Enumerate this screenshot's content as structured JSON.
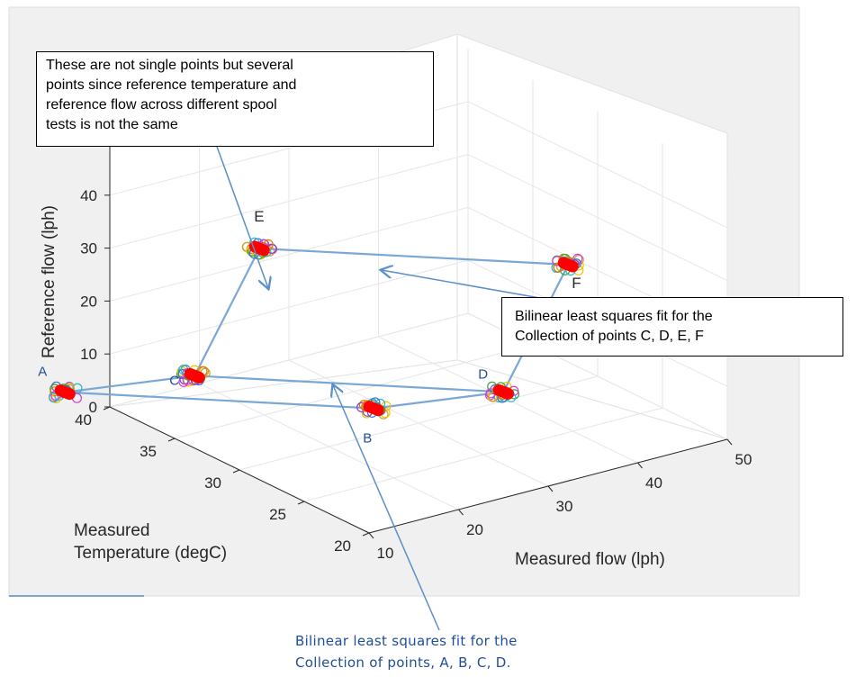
{
  "chart_data": {
    "type": "scatter3d",
    "xlabel": "Measured flow (lph)",
    "ylabel_lines": [
      "Measured",
      "Temperature (degC)"
    ],
    "zlabel": "Reference flow (lph)",
    "x_ticks": [
      "10",
      "20",
      "30",
      "40",
      "50"
    ],
    "y_ticks": [
      "20",
      "25",
      "30",
      "35",
      "40"
    ],
    "z_ticks": [
      "0",
      "10",
      "20",
      "30",
      "40"
    ],
    "xlim": [
      10,
      50
    ],
    "ylim": [
      20,
      40
    ],
    "zlim": [
      0,
      50
    ],
    "grid": true,
    "points": [
      {
        "label": "A",
        "x": 5,
        "y": 40,
        "z": 5
      },
      {
        "label": "B",
        "x": 25,
        "y": 30,
        "z": 5
      },
      {
        "label": "C",
        "x": 5,
        "y": 30,
        "z": 20
      },
      {
        "label": "D",
        "x": 25,
        "y": 20,
        "z": 20
      },
      {
        "label": "E",
        "x": 5,
        "y": 25,
        "z": 50
      },
      {
        "label": "F",
        "x": 25,
        "y": 15,
        "z": 50
      }
    ],
    "fit_edges": [
      [
        "A",
        "B"
      ],
      [
        "A",
        "C"
      ],
      [
        "B",
        "D"
      ],
      [
        "C",
        "D"
      ],
      [
        "C",
        "E"
      ],
      [
        "D",
        "F"
      ],
      [
        "E",
        "F"
      ]
    ],
    "colors": {
      "marker": "#ff0000",
      "fit_line": "#7ba7d6",
      "arrow": "#5b8fc9"
    }
  },
  "annotations": {
    "top_box": [
      "These are not single points but several",
      "points since reference temperature and",
      "reference flow across different spool",
      "tests is not the same"
    ],
    "right_box": [
      "Bilinear least squares fit for the",
      "Collection of points C, D, E, F"
    ],
    "bottom_note": [
      "Bilinear least squares fit for the",
      "Collection of points, A, B, C, D."
    ]
  }
}
